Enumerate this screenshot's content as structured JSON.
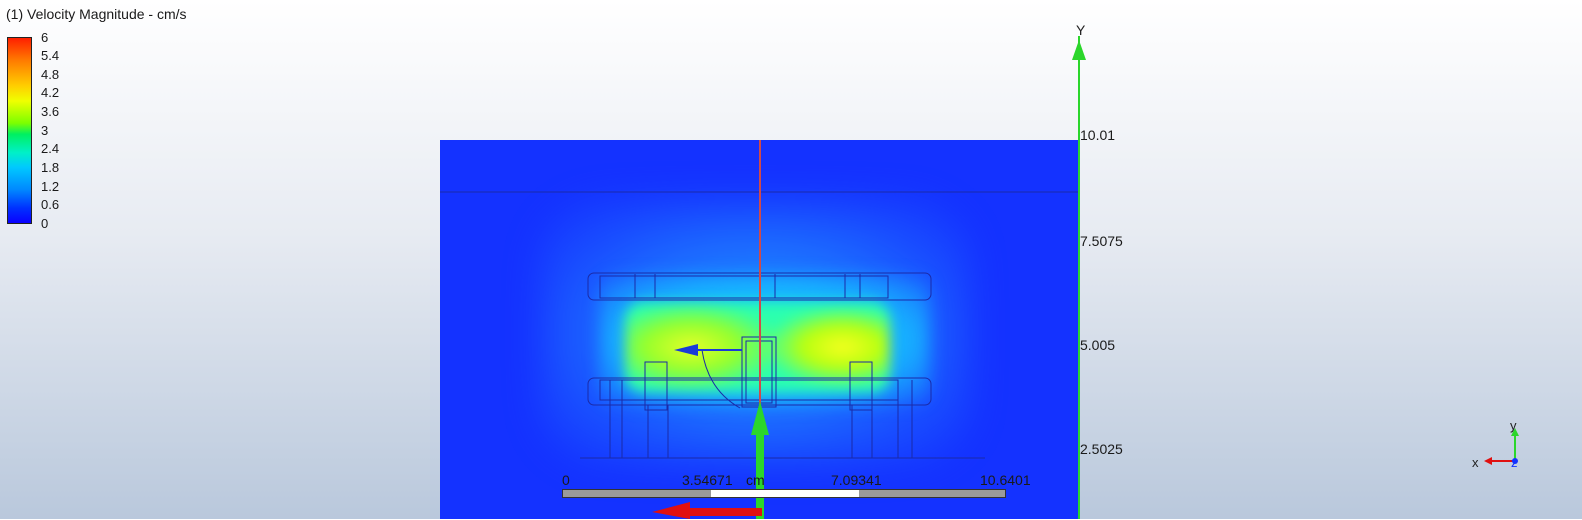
{
  "title": "(1) Velocity Magnitude - cm/s",
  "legend": {
    "labels": [
      "6",
      "5.4",
      "4.8",
      "4.2",
      "3.6",
      "3",
      "2.4",
      "1.8",
      "1.2",
      "0.6",
      "0"
    ]
  },
  "y_axis": {
    "label": "Y",
    "ticks": [
      "10.01",
      "7.5075",
      "5.005",
      "2.5025"
    ]
  },
  "scale_bar": {
    "labels": [
      "0",
      "3.54671",
      "7.09341",
      "10.6401"
    ],
    "unit": "cm"
  },
  "triad": {
    "x": "x",
    "y": "y",
    "z": "z"
  },
  "colors": {
    "domain_blue": "#1432ff",
    "axis_green": "#2bd62b",
    "axis_red": "#e01010"
  }
}
